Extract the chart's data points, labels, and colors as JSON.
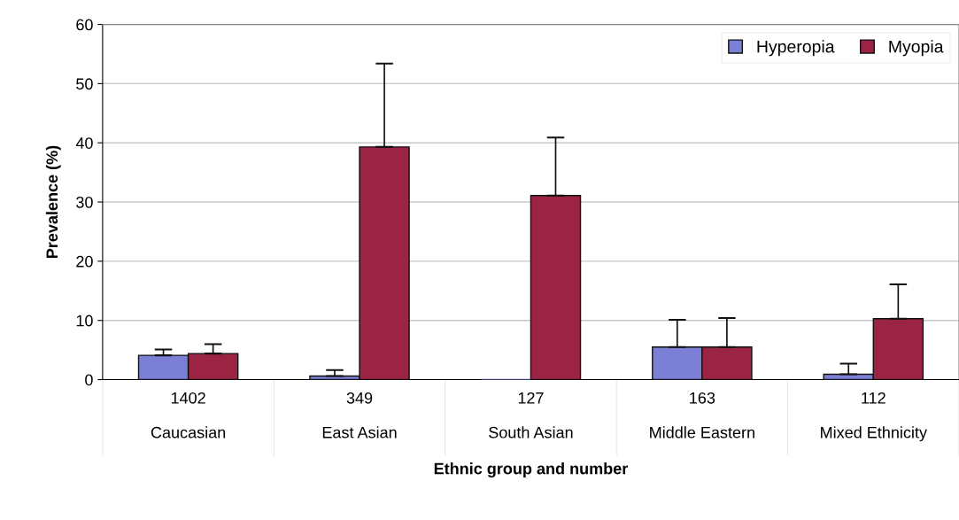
{
  "chart_data": {
    "type": "bar",
    "xlabel": "Ethnic group and number",
    "ylabel": "Prevalence (%)",
    "categories": [
      "1402\n\nCaucasian",
      "349\n\nEast Asian",
      "127\n\nSouth Asian",
      "163\n\nMiddle Eastern",
      "112\n\nMixed Ethnicity"
    ],
    "series": [
      {
        "name": "Hyperopia",
        "color": "#7b7fd6",
        "values": [
          4.1,
          0.6,
          0,
          5.5,
          0.9
        ],
        "errors": [
          [
            4.1,
            5.1
          ],
          [
            0.6,
            1.6
          ],
          null,
          [
            5.5,
            10.1
          ],
          [
            0.9,
            2.7
          ]
        ]
      },
      {
        "name": "Myopia",
        "color": "#9b2445",
        "values": [
          4.4,
          39.3,
          31.1,
          5.5,
          10.3
        ],
        "errors": [
          [
            4.4,
            6.0
          ],
          [
            39.3,
            53.4
          ],
          [
            31.1,
            40.9
          ],
          [
            5.5,
            10.4
          ],
          [
            10.3,
            16.1
          ]
        ]
      }
    ],
    "ylim": [
      0,
      60
    ],
    "yticks": [
      0,
      10,
      20,
      30,
      40,
      50,
      60
    ],
    "grid": "y",
    "legend": "top right"
  }
}
